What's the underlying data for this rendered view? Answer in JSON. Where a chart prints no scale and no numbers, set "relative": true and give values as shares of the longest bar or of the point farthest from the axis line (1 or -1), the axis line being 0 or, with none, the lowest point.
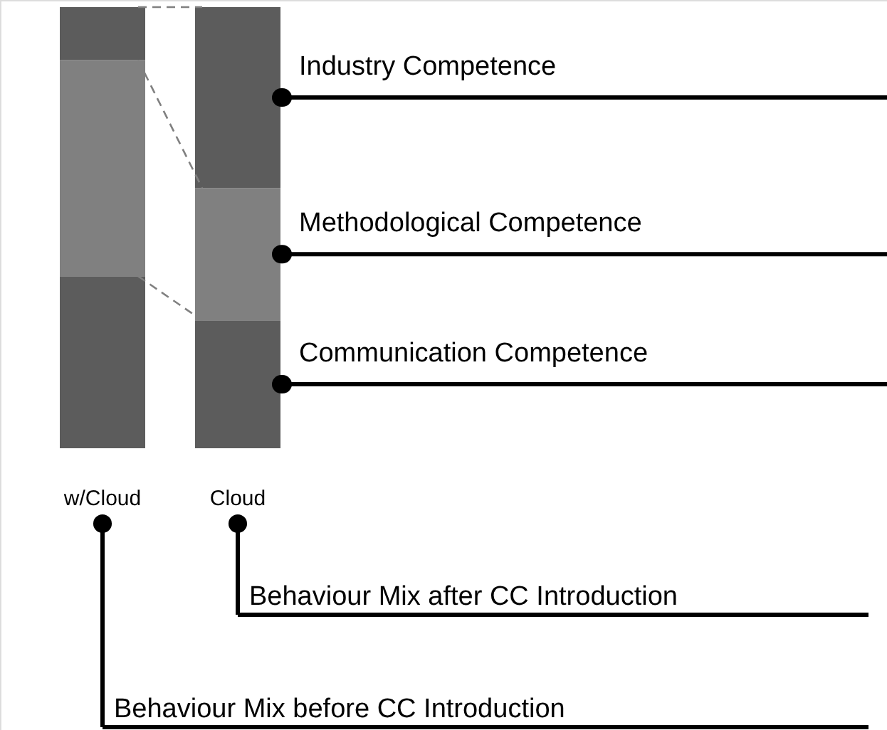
{
  "chart_data": {
    "type": "bar",
    "stacked": true,
    "relative": true,
    "categories": [
      "w/Cloud",
      "Cloud"
    ],
    "series": [
      {
        "name": "Communication Competence",
        "color": "#5c5c5c",
        "values": [
          0.39,
          0.29
        ]
      },
      {
        "name": "Methodological Competence",
        "color": "#808080",
        "values": [
          0.49,
          0.3
        ]
      },
      {
        "name": "Industry Competence",
        "color": "#5c5c5c",
        "values": [
          0.12,
          0.41
        ]
      }
    ],
    "annotations": [
      "Behaviour Mix after CC Introduction",
      "Behaviour Mix before CC Introduction"
    ]
  }
}
